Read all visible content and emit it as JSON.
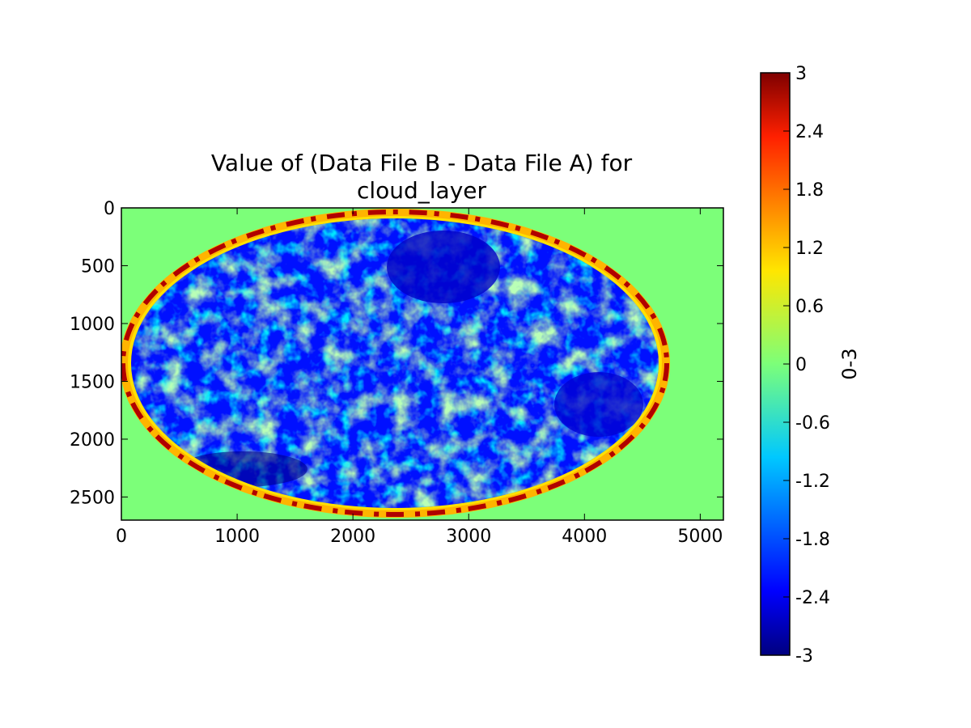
{
  "chart_data": {
    "type": "heatmap",
    "title": "Value of (Data File B - Data File A) for\ncloud_layer",
    "x_ticks": [
      0,
      1000,
      2000,
      3000,
      4000,
      5000
    ],
    "y_ticks": [
      0,
      500,
      1000,
      1500,
      2000,
      2500
    ],
    "xlim": [
      0,
      5200
    ],
    "ylim": [
      2700,
      0
    ],
    "colormap": "jet",
    "colorbar": {
      "label": "0-3",
      "range": [
        -3,
        3
      ],
      "ticks": [
        "3",
        "2.4",
        "1.8",
        "1.2",
        "0.6",
        "0",
        "-0.6",
        "-1.2",
        "-1.8",
        "-2.4",
        "-3"
      ]
    },
    "background_value": 0,
    "disk": {
      "description_value_ranges": "interior mostly -3 to -1.5 with patches near 0; rim band positive 1 to 3",
      "rim_value": 2.7,
      "interior_dominant_value": -2.2
    }
  }
}
